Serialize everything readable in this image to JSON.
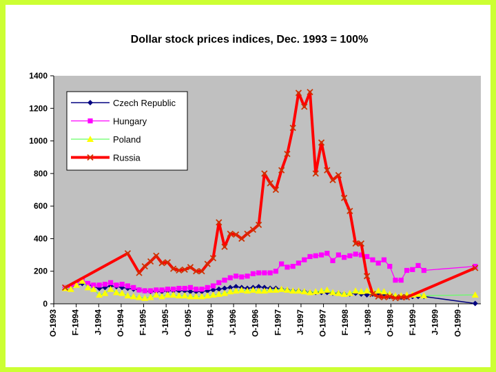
{
  "chart_data": {
    "type": "line",
    "title": "Dollar stock prices indices, Dec. 1993 = 100%",
    "xlabel": "",
    "ylabel": "",
    "ylim": [
      0,
      1400
    ],
    "yticks": [
      0,
      200,
      400,
      600,
      800,
      1000,
      1200,
      1400
    ],
    "grid": false,
    "legend_position": "top-left",
    "colors": {
      "plot_background": "#c0c0c0",
      "slide_background": "#ccff33"
    },
    "x_tick_labels": [
      "O-1993",
      "F-1994",
      "J-1994",
      "O-1994",
      "F-1995",
      "J-1995",
      "O-1995",
      "F-1996",
      "J-1996",
      "O-1996",
      "F-1997",
      "J-1997",
      "O-1997",
      "F-1998",
      "J-1998",
      "O-1998",
      "F-1999",
      "J-1999",
      "O-1999"
    ],
    "x_range": [
      1993.75,
      2000.0
    ],
    "series": [
      {
        "name": "Czech Republic",
        "color": "#000080",
        "marker": "diamond",
        "points": [
          [
            1993.917,
            100
          ],
          [
            1994.0,
            105
          ],
          [
            1994.083,
            115
          ],
          [
            1994.167,
            125
          ],
          [
            1994.25,
            120
          ],
          [
            1994.333,
            105
          ],
          [
            1994.417,
            95
          ],
          [
            1994.5,
            100
          ],
          [
            1994.583,
            110
          ],
          [
            1994.667,
            105
          ],
          [
            1994.75,
            100
          ],
          [
            1994.833,
            95
          ],
          [
            1994.917,
            90
          ],
          [
            1995.0,
            85
          ],
          [
            1995.083,
            80
          ],
          [
            1995.167,
            75
          ],
          [
            1995.25,
            75
          ],
          [
            1995.333,
            75
          ],
          [
            1995.417,
            80
          ],
          [
            1995.5,
            80
          ],
          [
            1995.583,
            80
          ],
          [
            1995.667,
            80
          ],
          [
            1995.75,
            75
          ],
          [
            1995.833,
            75
          ],
          [
            1995.917,
            75
          ],
          [
            1996.0,
            80
          ],
          [
            1996.083,
            85
          ],
          [
            1996.167,
            90
          ],
          [
            1996.25,
            95
          ],
          [
            1996.333,
            100
          ],
          [
            1996.417,
            105
          ],
          [
            1996.5,
            100
          ],
          [
            1996.583,
            95
          ],
          [
            1996.667,
            100
          ],
          [
            1996.75,
            105
          ],
          [
            1996.833,
            100
          ],
          [
            1996.917,
            95
          ],
          [
            1997.0,
            95
          ],
          [
            1997.083,
            90
          ],
          [
            1997.167,
            85
          ],
          [
            1997.25,
            80
          ],
          [
            1997.333,
            80
          ],
          [
            1997.417,
            75
          ],
          [
            1997.5,
            70
          ],
          [
            1997.583,
            70
          ],
          [
            1997.667,
            70
          ],
          [
            1997.75,
            70
          ],
          [
            1997.833,
            65
          ],
          [
            1997.917,
            65
          ],
          [
            1998.0,
            60
          ],
          [
            1998.083,
            60
          ],
          [
            1998.167,
            65
          ],
          [
            1998.25,
            60
          ],
          [
            1998.333,
            55
          ],
          [
            1998.417,
            60
          ],
          [
            1998.5,
            55
          ],
          [
            1998.583,
            50
          ],
          [
            1998.667,
            45
          ],
          [
            1998.75,
            45
          ],
          [
            1998.833,
            40
          ],
          [
            1998.917,
            42
          ],
          [
            1999.0,
            45
          ],
          [
            1999.083,
            45
          ],
          [
            1999.167,
            45
          ],
          [
            1999.917,
            2
          ]
        ]
      },
      {
        "name": "Hungary",
        "color": "#ff00ff",
        "marker": "square",
        "points": [
          [
            1993.917,
            100
          ],
          [
            1994.0,
            105
          ],
          [
            1994.083,
            120
          ],
          [
            1994.167,
            145
          ],
          [
            1994.25,
            125
          ],
          [
            1994.333,
            115
          ],
          [
            1994.417,
            115
          ],
          [
            1994.5,
            120
          ],
          [
            1994.583,
            130
          ],
          [
            1994.667,
            115
          ],
          [
            1994.75,
            120
          ],
          [
            1994.833,
            110
          ],
          [
            1994.917,
            100
          ],
          [
            1995.0,
            85
          ],
          [
            1995.083,
            80
          ],
          [
            1995.167,
            80
          ],
          [
            1995.25,
            85
          ],
          [
            1995.333,
            85
          ],
          [
            1995.417,
            90
          ],
          [
            1995.5,
            90
          ],
          [
            1995.583,
            95
          ],
          [
            1995.667,
            95
          ],
          [
            1995.75,
            100
          ],
          [
            1995.833,
            90
          ],
          [
            1995.917,
            90
          ],
          [
            1996.0,
            100
          ],
          [
            1996.083,
            110
          ],
          [
            1996.167,
            130
          ],
          [
            1996.25,
            145
          ],
          [
            1996.333,
            160
          ],
          [
            1996.417,
            170
          ],
          [
            1996.5,
            165
          ],
          [
            1996.583,
            170
          ],
          [
            1996.667,
            185
          ],
          [
            1996.75,
            190
          ],
          [
            1996.833,
            190
          ],
          [
            1996.917,
            190
          ],
          [
            1997.0,
            200
          ],
          [
            1997.083,
            245
          ],
          [
            1997.167,
            225
          ],
          [
            1997.25,
            230
          ],
          [
            1997.333,
            250
          ],
          [
            1997.417,
            270
          ],
          [
            1997.5,
            290
          ],
          [
            1997.583,
            295
          ],
          [
            1997.667,
            300
          ],
          [
            1997.75,
            310
          ],
          [
            1997.833,
            265
          ],
          [
            1997.917,
            300
          ],
          [
            1998.0,
            285
          ],
          [
            1998.083,
            295
          ],
          [
            1998.167,
            305
          ],
          [
            1998.25,
            300
          ],
          [
            1998.333,
            290
          ],
          [
            1998.417,
            270
          ],
          [
            1998.5,
            250
          ],
          [
            1998.583,
            270
          ],
          [
            1998.667,
            230
          ],
          [
            1998.75,
            145
          ],
          [
            1998.833,
            145
          ],
          [
            1998.917,
            205
          ],
          [
            1999.0,
            210
          ],
          [
            1999.083,
            235
          ],
          [
            1999.167,
            205
          ],
          [
            1999.917,
            230
          ]
        ]
      },
      {
        "name": "Poland",
        "color": "#66ff66",
        "marker": "triangle",
        "marker_color": "#ffff00",
        "points": [
          [
            1993.917,
            95
          ],
          [
            1994.0,
            90
          ],
          [
            1994.083,
            115
          ],
          [
            1994.167,
            140
          ],
          [
            1994.25,
            100
          ],
          [
            1994.333,
            90
          ],
          [
            1994.417,
            55
          ],
          [
            1994.5,
            65
          ],
          [
            1994.583,
            90
          ],
          [
            1994.667,
            70
          ],
          [
            1994.75,
            65
          ],
          [
            1994.833,
            50
          ],
          [
            1994.917,
            45
          ],
          [
            1995.0,
            40
          ],
          [
            1995.083,
            35
          ],
          [
            1995.167,
            40
          ],
          [
            1995.25,
            55
          ],
          [
            1995.333,
            45
          ],
          [
            1995.417,
            55
          ],
          [
            1995.5,
            55
          ],
          [
            1995.583,
            50
          ],
          [
            1995.667,
            50
          ],
          [
            1995.75,
            45
          ],
          [
            1995.833,
            45
          ],
          [
            1995.917,
            45
          ],
          [
            1996.0,
            50
          ],
          [
            1996.083,
            55
          ],
          [
            1996.167,
            60
          ],
          [
            1996.25,
            65
          ],
          [
            1996.333,
            75
          ],
          [
            1996.417,
            80
          ],
          [
            1996.5,
            85
          ],
          [
            1996.583,
            80
          ],
          [
            1996.667,
            85
          ],
          [
            1996.75,
            80
          ],
          [
            1996.833,
            80
          ],
          [
            1996.917,
            85
          ],
          [
            1997.0,
            85
          ],
          [
            1997.083,
            90
          ],
          [
            1997.167,
            85
          ],
          [
            1997.25,
            80
          ],
          [
            1997.333,
            80
          ],
          [
            1997.417,
            75
          ],
          [
            1997.5,
            70
          ],
          [
            1997.583,
            75
          ],
          [
            1997.667,
            80
          ],
          [
            1997.75,
            85
          ],
          [
            1997.833,
            70
          ],
          [
            1997.917,
            65
          ],
          [
            1998.0,
            60
          ],
          [
            1998.083,
            65
          ],
          [
            1998.167,
            80
          ],
          [
            1998.25,
            75
          ],
          [
            1998.333,
            80
          ],
          [
            1998.417,
            75
          ],
          [
            1998.5,
            80
          ],
          [
            1998.583,
            75
          ],
          [
            1998.667,
            60
          ],
          [
            1998.75,
            50
          ],
          [
            1998.833,
            50
          ],
          [
            1998.917,
            55
          ],
          [
            1999.0,
            55
          ],
          [
            1999.083,
            60
          ],
          [
            1999.167,
            50
          ],
          [
            1999.917,
            55
          ]
        ]
      },
      {
        "name": "Russia",
        "color": "#ff0000",
        "marker": "x",
        "points": [
          [
            1993.917,
            100
          ],
          [
            1994.833,
            310
          ],
          [
            1995.0,
            190
          ],
          [
            1995.083,
            230
          ],
          [
            1995.167,
            260
          ],
          [
            1995.25,
            295
          ],
          [
            1995.333,
            250
          ],
          [
            1995.417,
            255
          ],
          [
            1995.5,
            215
          ],
          [
            1995.583,
            205
          ],
          [
            1995.667,
            210
          ],
          [
            1995.75,
            225
          ],
          [
            1995.833,
            200
          ],
          [
            1995.917,
            200
          ],
          [
            1996.0,
            245
          ],
          [
            1996.083,
            280
          ],
          [
            1996.167,
            500
          ],
          [
            1996.25,
            350
          ],
          [
            1996.333,
            430
          ],
          [
            1996.417,
            425
          ],
          [
            1996.5,
            400
          ],
          [
            1996.583,
            430
          ],
          [
            1996.667,
            455
          ],
          [
            1996.75,
            485
          ],
          [
            1996.833,
            800
          ],
          [
            1996.917,
            740
          ],
          [
            1997.0,
            700
          ],
          [
            1997.083,
            820
          ],
          [
            1997.167,
            920
          ],
          [
            1997.25,
            1080
          ],
          [
            1997.333,
            1295
          ],
          [
            1997.417,
            1210
          ],
          [
            1997.5,
            1300
          ],
          [
            1997.583,
            800
          ],
          [
            1997.667,
            990
          ],
          [
            1997.75,
            820
          ],
          [
            1997.833,
            760
          ],
          [
            1997.917,
            790
          ],
          [
            1998.0,
            650
          ],
          [
            1998.083,
            570
          ],
          [
            1998.167,
            370
          ],
          [
            1998.25,
            370
          ],
          [
            1998.333,
            170
          ],
          [
            1998.417,
            60
          ],
          [
            1998.5,
            45
          ],
          [
            1998.583,
            40
          ],
          [
            1998.667,
            45
          ],
          [
            1998.75,
            35
          ],
          [
            1998.833,
            40
          ],
          [
            1998.917,
            40
          ],
          [
            1999.917,
            220
          ]
        ]
      }
    ]
  }
}
